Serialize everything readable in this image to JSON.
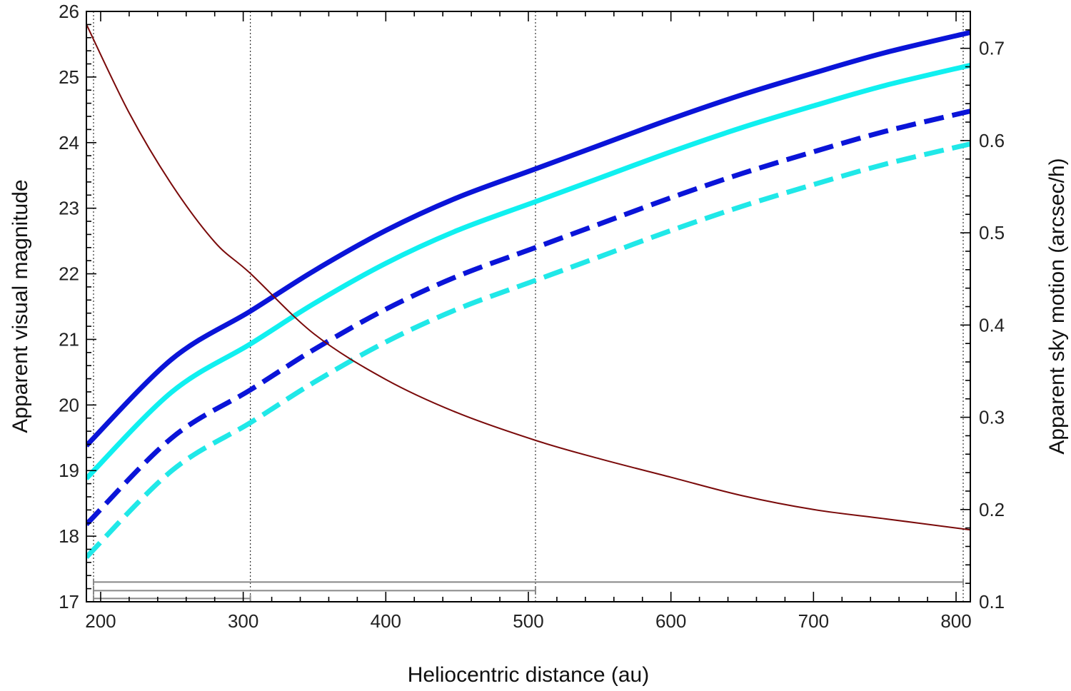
{
  "chart_data": {
    "type": "line",
    "xlabel": "Heliocentric distance (au)",
    "ylabel": "Apparent visual magnitude",
    "y2label": "Apparent sky motion (arcsec/h)",
    "xlim": [
      190,
      810
    ],
    "ylim": [
      17,
      26
    ],
    "y2lim": [
      0.1,
      0.74
    ],
    "y_inverted": false,
    "xticks": [
      "200",
      "300",
      "400",
      "500",
      "600",
      "700",
      "800"
    ],
    "yticks": [
      "17",
      "18",
      "19",
      "20",
      "21",
      "22",
      "23",
      "24",
      "25",
      "26"
    ],
    "y2ticks": [
      "0.1",
      "0.2",
      "0.3",
      "0.4",
      "0.5",
      "0.6",
      "0.7"
    ],
    "grid": false,
    "vlines": [
      195,
      305,
      505,
      805
    ],
    "ranges": [
      {
        "from": 195,
        "to": 805,
        "level": 17.3
      },
      {
        "from": 195,
        "to": 505,
        "level": 17.17
      },
      {
        "from": 195,
        "to": 305,
        "level": 17.05
      }
    ],
    "series": [
      {
        "color": "#0a14d8",
        "style": "solid",
        "width": 7,
        "axis": "left",
        "x": [
          190,
          250,
          305,
          350,
          400,
          450,
          505,
          550,
          600,
          650,
          700,
          750,
          810
        ],
        "y": [
          19.38,
          20.7,
          21.43,
          22.05,
          22.66,
          23.16,
          23.6,
          23.96,
          24.36,
          24.73,
          25.06,
          25.37,
          25.68
        ]
      },
      {
        "color": "#10f0f0",
        "style": "solid",
        "width": 7,
        "axis": "left",
        "x": [
          190,
          250,
          305,
          350,
          400,
          450,
          505,
          550,
          600,
          650,
          700,
          750,
          810
        ],
        "y": [
          18.88,
          20.2,
          20.93,
          21.55,
          22.16,
          22.66,
          23.1,
          23.46,
          23.86,
          24.23,
          24.56,
          24.87,
          25.18
        ]
      },
      {
        "color": "#0a14d8",
        "style": "dashed",
        "width": 7,
        "axis": "left",
        "x": [
          190,
          250,
          305,
          350,
          400,
          450,
          505,
          550,
          600,
          650,
          700,
          750,
          810
        ],
        "y": [
          18.18,
          19.5,
          20.23,
          20.85,
          21.46,
          21.96,
          22.4,
          22.76,
          23.16,
          23.53,
          23.86,
          24.17,
          24.48
        ]
      },
      {
        "color": "#20e8e8",
        "style": "dashed",
        "width": 7,
        "axis": "left",
        "x": [
          190,
          250,
          305,
          350,
          400,
          450,
          505,
          550,
          600,
          650,
          700,
          750,
          810
        ],
        "y": [
          17.68,
          19.0,
          19.73,
          20.35,
          20.96,
          21.46,
          21.9,
          22.26,
          22.66,
          23.03,
          23.36,
          23.67,
          23.98
        ]
      },
      {
        "color": "#7a0a0a",
        "style": "solid",
        "width": 2,
        "axis": "right",
        "x": [
          190,
          220,
          250,
          280,
          305,
          350,
          400,
          450,
          505,
          550,
          600,
          650,
          700,
          750,
          810
        ],
        "y": [
          0.726,
          0.63,
          0.552,
          0.49,
          0.456,
          0.39,
          0.341,
          0.305,
          0.275,
          0.255,
          0.235,
          0.215,
          0.2,
          0.19,
          0.178
        ]
      }
    ]
  }
}
